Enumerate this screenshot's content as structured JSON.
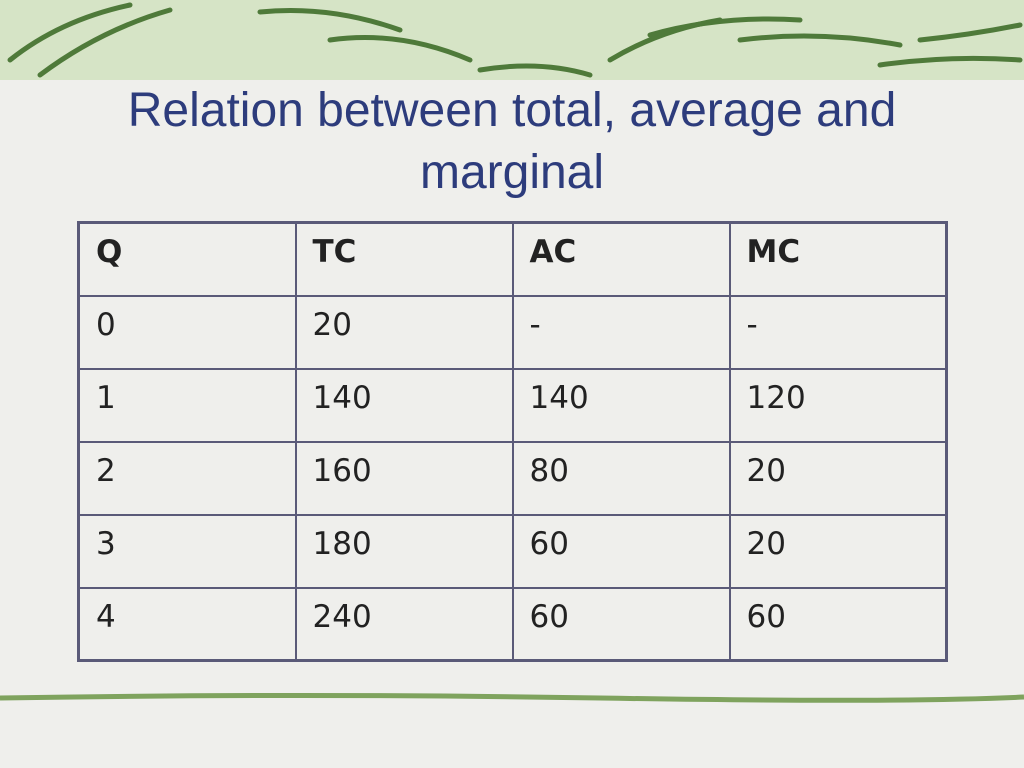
{
  "slide": {
    "title": "Relation between total, average and marginal",
    "table": {
      "header": [
        "Q",
        "TC",
        "AC",
        "MC"
      ],
      "rows": [
        [
          "0",
          "20",
          "-",
          "-"
        ],
        [
          "1",
          "140",
          "140",
          "120"
        ],
        [
          "2",
          "160",
          "80",
          "20"
        ],
        [
          "3",
          "180",
          "60",
          "20"
        ],
        [
          "4",
          "240",
          "60",
          "60"
        ]
      ]
    }
  }
}
